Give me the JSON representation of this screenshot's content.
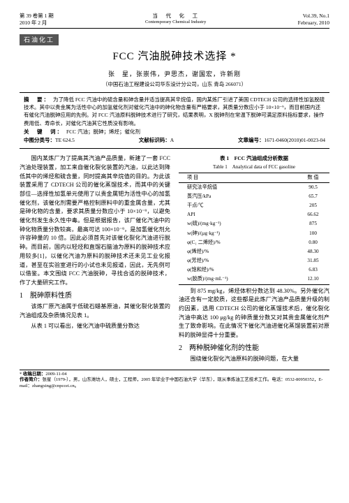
{
  "header": {
    "cn_line1": "第 39 卷第 1 期",
    "cn_line2": "2010 年 2 月",
    "center_cn": "当　代　化　工",
    "center_en": "Contemporary Chemical Industry",
    "en_line1": "Vol.39, No.1",
    "en_line2": "February, 2010"
  },
  "badge": "石油化工",
  "title": "FCC 汽油脱砷技术选择 *",
  "authors": "张　星，张崇伟，尹思杰，谢国宏，许新刚",
  "affil": "（中国石油工程建设公司华东设计分公司，山东 青岛 266071）",
  "abstract_label": "摘　要：",
  "abstract": "为了降低 FCC 汽油中的硫含量和砷含量并适当提高其辛烷值，国内某炼厂引进了美国 CDTECH 公司的选择性加氢脱硫技术。其中以贵金属为活性中心的加氢催化剂对催化汽油中的砷化物含量有严格要求，其质量分数应小于 10×10⁻⁹，而目前国内还有催化汽油脱砷应用的先例。对 FCC 汽油原料脱砷技术进行了研究，结果表明，X 脱砷剂在常温下脱砷可满足原料指标要求，操作费用低、寿命长，对催化汽油其它性质没有影响。",
  "kw_label": "关　键　词：",
  "kw": "FCC 汽油；脱砷；烯烃；催化剂",
  "class_cn": "中图分类号：",
  "class_val": "TE 624.5",
  "doc_code_label": "文献标识码：",
  "doc_code": "A",
  "article_id_label": "文章编号：",
  "article_id": "1671-0460(2010)01-0023-04",
  "body": {
    "p1": "国内某炼厂为了提高其汽油产品质量，新建了一套 FCC 汽油处理装置，加工来自催化裂化装置的汽油，以此达到降低其中的烯烃和硫含量，同时提高其辛烷值的目的。为此该装置采用了 CDTECH 公司的催化蒸馏技术，而其中的关键部位—选择性加氢单元使用了以贵金属钯为活性中心的加氢催化剂，该催化剂需要严格控制原料中的重金属含量，尤其是砷化物的含量，要求其质量分数应小于 10×10⁻⁹，以避免催化剂发生永久性中毒。但是根据报告，该厂催化汽油中的砷化物质量分数较高，最高可达 100×10⁻⁹，是加氢催化剂允许容砷量的 10 倍。因此必须首先对该催化裂化汽油进行脱砷。而目前，国内以轻烃和直馏石脑油为原料的脱砷技术应用较多[1]，以催化汽油为原料的脱砷技术还未见工业化报道，甚至在实验室进行的小试也未见报道，因此，无先例可以借鉴。本文围绕 FCC 汽油脱砷，寻找合适的脱砷技术，作了大量研究工作。",
    "h1": "1　脱砷原料性质",
    "p2": "该炼厂原汽油属于低硫石蜡基原油，其催化裂化装置的汽油组成及杂质情况见表 1。",
    "p3": "从表 1 可以看出，催化汽油中硫质量分数达",
    "p_r1": "到 875 mg/kg，烯烃体积分数达到 48.30%。另外催化汽油还含有一定胶质，这些都是此炼厂汽油产品质量升级的制约因素，选用 CDTECH 公司的催化蒸馏技术后，催化裂化汽油中高达 100 μg/kg 的砷质量分数又对其贵金属催化剂产生了致命影响。在此情况下催化汽油进催化蒸馏装置前对原料的脱砷显得十分重要。",
    "h2": "2　两种脱砷催化剂的性能",
    "p_r2": "围绕催化裂化汽油原料的脱砷问题，在大量"
  },
  "table": {
    "caption_cn": "表 1　FCC 汽油组成分析数据",
    "caption_en": "Table 1　Analytical data of FCC gasoline",
    "head_left": "项 目",
    "head_right": "数 值",
    "rows": [
      [
        "研究法辛烷值",
        "90.5"
      ],
      [
        "蒸汽压/kPa",
        "65.7"
      ],
      [
        "干点/℃",
        "205"
      ],
      [
        "API",
        "66.62"
      ],
      [
        "w(硫)/(mg·kg⁻¹)",
        "875"
      ],
      [
        "w(砷)/(μg·kg⁻¹)",
        "100"
      ],
      [
        "φ(C₁ 二烯烃)/%",
        "0.80"
      ],
      [
        "φ(烯烃)/%",
        "48.30"
      ],
      [
        "φ(芳烃)/%",
        "31.85"
      ],
      [
        "φ(饱和烃)/%",
        "6.83"
      ],
      [
        "w(胶质)/(mg·mL⁻¹)",
        "12.10"
      ]
    ]
  },
  "footnote": {
    "date_label": "收稿日期：",
    "date": "2009-11-04",
    "author_label": "作者简介：",
    "author": "张星（1979-），男，山东潍坊人，硕士，工程师，2005 年毕业于中国石油大学（华东），现从事炼油工艺技术工作。电话：0532-80950352，E-mail：zhangxing@cnpccei.cn。"
  }
}
